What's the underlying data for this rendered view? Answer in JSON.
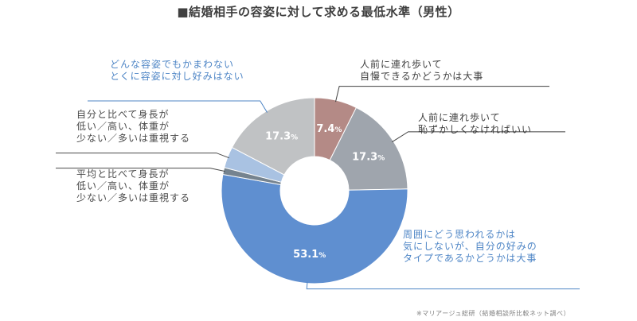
{
  "chart_data": {
    "type": "pie",
    "title": "■結婚相手の容姿に対して求める最低水準（男性）",
    "segments": [
      {
        "lines": [
          "人前に連れ歩いて",
          "自慢できるかどうかは大事"
        ],
        "value": 7.4,
        "value_label": "7.4",
        "color": "#b48a86",
        "label_color": "#404040"
      },
      {
        "lines": [
          "人前に連れ歩いて",
          "恥ずかしくなければいい"
        ],
        "value": 17.3,
        "value_label": "17.3",
        "color": "#9fa5ad",
        "label_color": "#404040"
      },
      {
        "lines": [
          "周囲にどう思われるかは",
          "気にしないが、自分の好みの",
          "タイプであるかどうかは大事"
        ],
        "value": 53.1,
        "value_label": "53.1",
        "color": "#5f8fd0",
        "label_color": "#4f86c6"
      },
      {
        "lines": [
          "平均と比べて身長が",
          "低い／高い、体重が",
          "少ない／多いは重視する"
        ],
        "value": 1.2,
        "value_label": "",
        "color": "#75838f",
        "label_color": "#4a4a4a"
      },
      {
        "lines": [
          "自分と比べて身長が",
          "低い／高い、体重が",
          "少ない／多いは重視する"
        ],
        "value": 3.7,
        "value_label": "",
        "color": "#a9c2e2",
        "label_color": "#4a4a4a"
      },
      {
        "lines": [
          "どんな容姿でもかまわない",
          "とくに容姿に対し好みはない"
        ],
        "value": 17.3,
        "value_label": "17.3",
        "color": "#c0c2c4",
        "label_color": "#4f86c6"
      }
    ],
    "percent_symbol": "%"
  },
  "source": "※マリアージュ総研（結婚相談所比較ネット調べ）"
}
